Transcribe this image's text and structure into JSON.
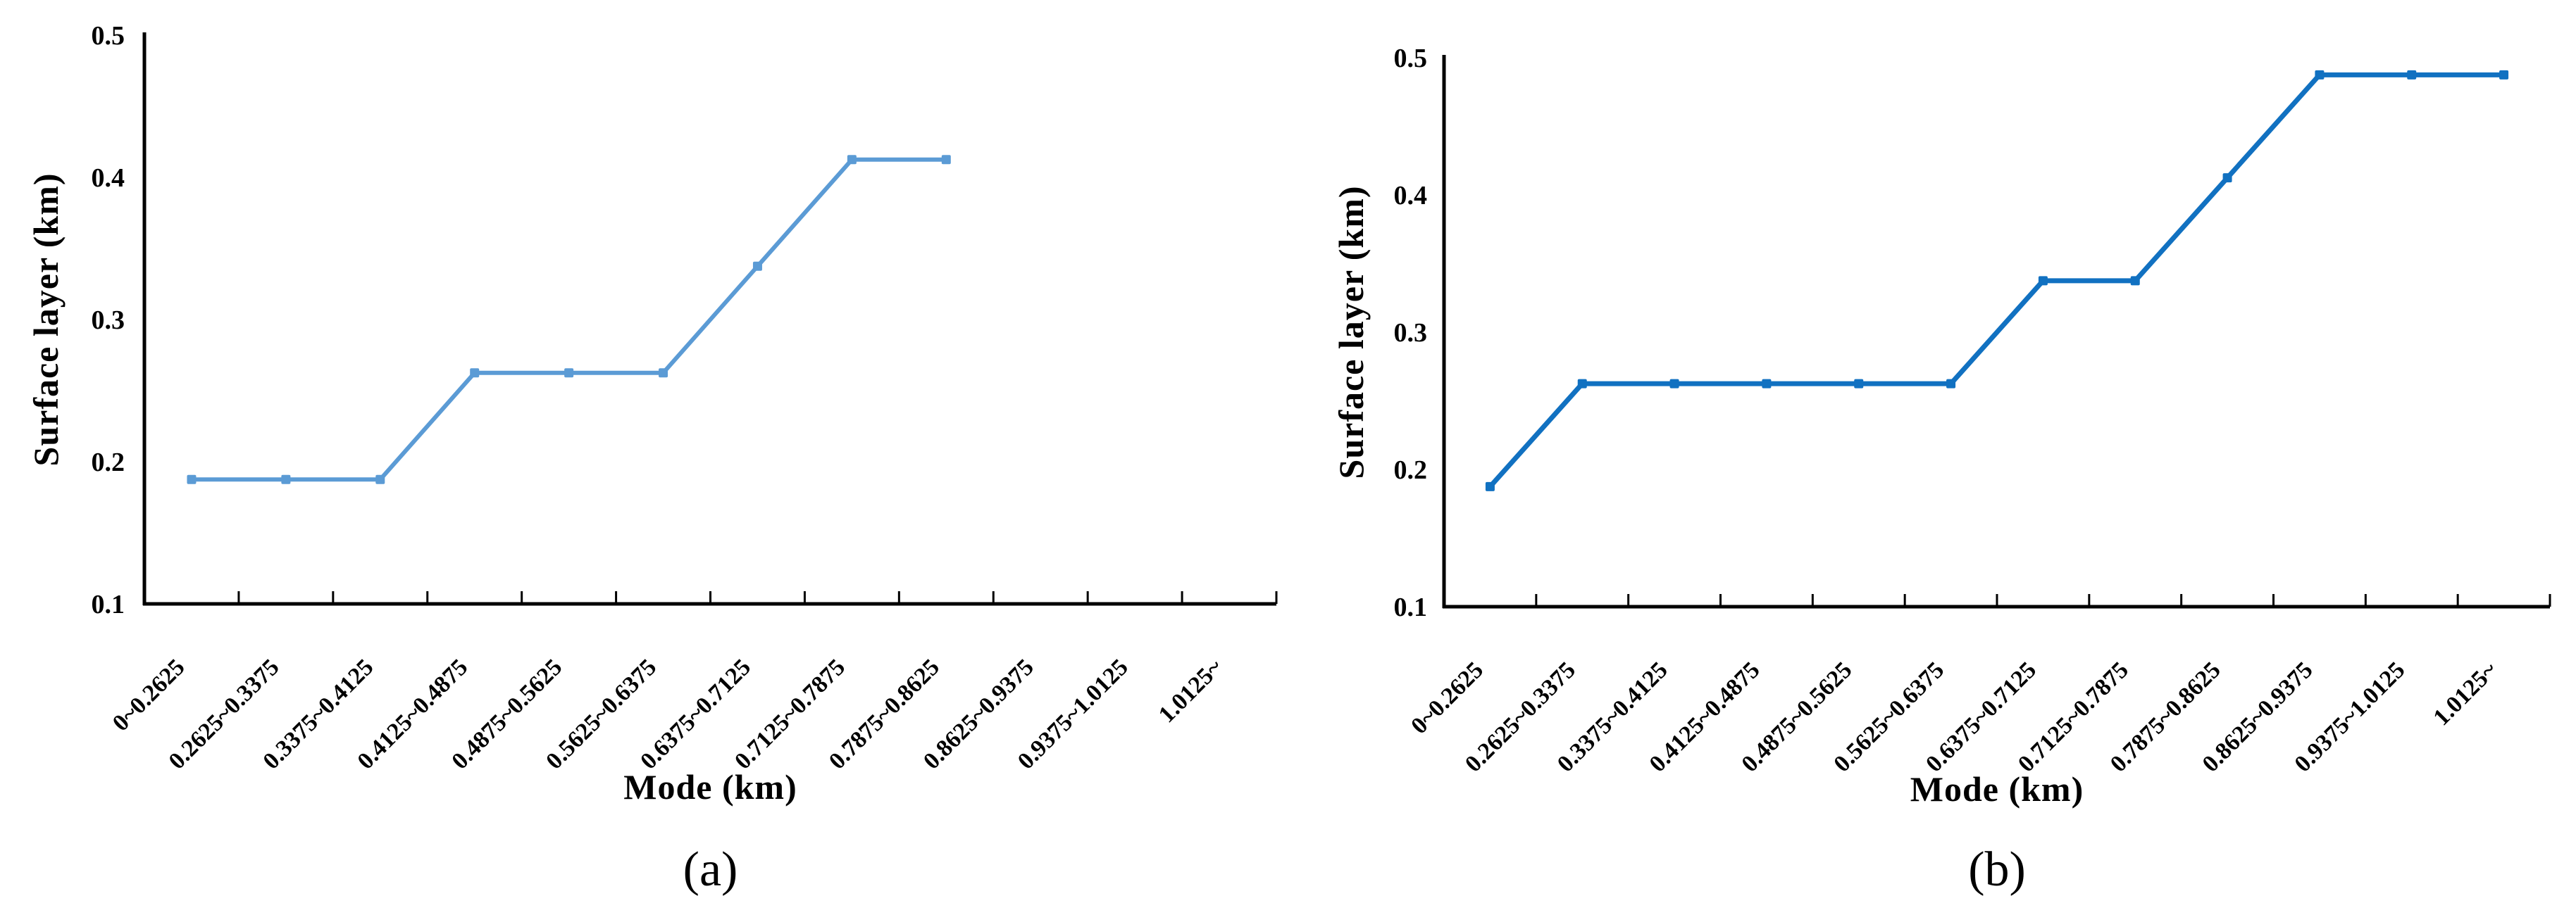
{
  "figure": {
    "background": "#ffffff",
    "axis_color": "#000000",
    "panel_count": 2
  },
  "chart_data": [
    {
      "type": "line",
      "panel_caption": "(a)",
      "xlabel": "Mode (km)",
      "ylabel": "Surface layer (km)",
      "categories": [
        "0~0.2625",
        "0.2625~0.3375",
        "0.3375~0.4125",
        "0.4125~0.4875",
        "0.4875~0.5625",
        "0.5625~0.6375",
        "0.6375~0.7125",
        "0.7125~0.7875",
        "0.7875~0.8625",
        "0.8625~0.9375",
        "0.9375~1.0125",
        "1.0125~"
      ],
      "series": [
        {
          "name": "Surface layer",
          "values": [
            0.1875,
            0.1875,
            0.1875,
            0.2625,
            0.2625,
            0.2625,
            0.3375,
            0.4125,
            0.4125,
            null,
            null,
            null
          ],
          "line_color": "#5B9BD5",
          "marker_color": "#5B9BD5",
          "marker": "square"
        }
      ],
      "ylim": [
        0.1,
        0.5
      ],
      "yticks": [
        "0.1",
        "0.2",
        "0.3",
        "0.4",
        "0.5"
      ],
      "grid": false,
      "legend": "none",
      "x_tick_rotation_deg": 45
    },
    {
      "type": "line",
      "panel_caption": "(b)",
      "xlabel": "Mode (km)",
      "ylabel": "Surface layer (km)",
      "categories": [
        "0~0.2625",
        "0.2625~0.3375",
        "0.3375~0.4125",
        "0.4125~0.4875",
        "0.4875~0.5625",
        "0.5625~0.6375",
        "0.6375~0.7125",
        "0.7125~0.7875",
        "0.7875~0.8625",
        "0.8625~0.9375",
        "0.9375~1.0125",
        "1.0125~"
      ],
      "series": [
        {
          "name": "Surface layer",
          "values": [
            0.1875,
            0.2625,
            0.2625,
            0.2625,
            0.2625,
            0.2625,
            0.3375,
            0.3375,
            0.4125,
            0.4875,
            0.4875,
            0.4875
          ],
          "line_color": "#1171C1",
          "marker_color": "#1171C1",
          "marker": "square"
        }
      ],
      "ylim": [
        0.1,
        0.5
      ],
      "yticks": [
        "0.1",
        "0.2",
        "0.3",
        "0.4",
        "0.5"
      ],
      "grid": false,
      "legend": "none",
      "x_tick_rotation_deg": 45
    }
  ]
}
